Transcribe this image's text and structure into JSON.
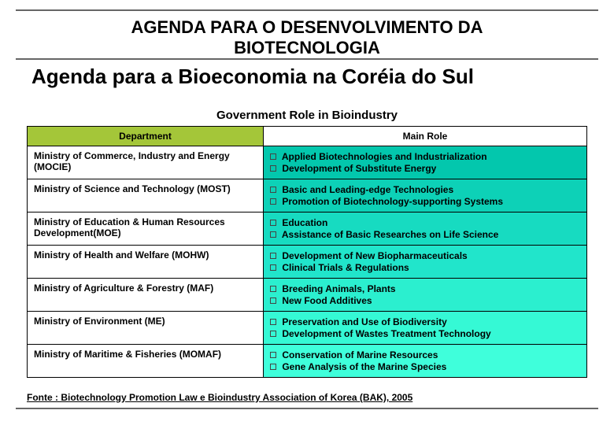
{
  "header": {
    "title_line1": "AGENDA PARA O DESENVOLVIMENTO DA",
    "title_line2": "BIOTECNOLOGIA",
    "subtitle": "Agenda para a Bioeconomia na Coréia do Sul"
  },
  "tableCaption": "Government Role in Bioindustry",
  "columns": {
    "department": "Department",
    "mainRole": "Main Role"
  },
  "styling": {
    "header_dept_bg": "#a4c639",
    "header_role_bg": "#ffffff",
    "row_colors": [
      "#03c7ad",
      "#0dd1b7",
      "#17dbc1",
      "#21e5cb",
      "#2befcf",
      "#35f9d5",
      "#3fffdb"
    ],
    "border_color": "#000000",
    "font_header": 22,
    "font_subtitle": 26,
    "font_caption": 15,
    "font_cell": 12
  },
  "rows": [
    {
      "dept": "Ministry of Commerce, Industry and Energy (MOCIE)",
      "roles": [
        "Applied Biotechnologies and Industrialization",
        "Development of Substitute Energy"
      ]
    },
    {
      "dept": "Ministry of Science and Technology (MOST)",
      "roles": [
        "Basic and Leading-edge Technologies",
        "Promotion of Biotechnology-supporting Systems"
      ]
    },
    {
      "dept": "Ministry of Education & Human Resources Development(MOE)",
      "roles": [
        "Education",
        "Assistance of Basic Researches on Life Science"
      ]
    },
    {
      "dept": "Ministry of Health and Welfare (MOHW)",
      "roles": [
        "Development of New Biopharmaceuticals",
        "Clinical Trials & Regulations"
      ]
    },
    {
      "dept": "Ministry of Agriculture & Forestry (MAF)",
      "roles": [
        "Breeding Animals, Plants",
        "New Food Additives"
      ]
    },
    {
      "dept": "Ministry of Environment (ME)",
      "roles": [
        "Preservation and Use of Biodiversity",
        "Development of Wastes Treatment Technology"
      ]
    },
    {
      "dept": "Ministry of Maritime & Fisheries (MOMAF)",
      "roles": [
        "Conservation of Marine Resources",
        "Gene Analysis of the Marine Species"
      ]
    }
  ],
  "source": "Fonte : Biotechnology Promotion Law  e Bioindustry Association of Korea (BAK), 2005"
}
